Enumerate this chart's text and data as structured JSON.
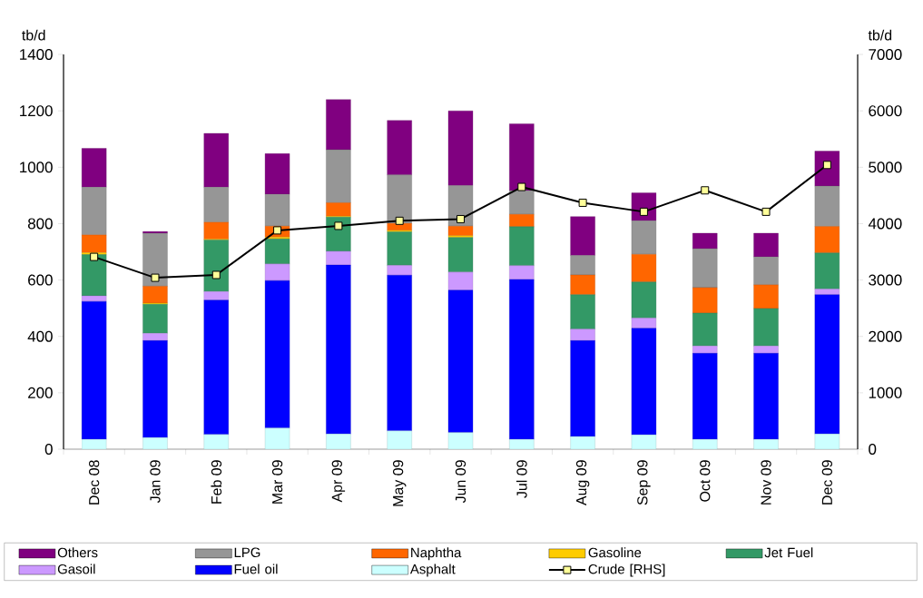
{
  "chart_data": {
    "type": "bar",
    "stacked": true,
    "ylabel": "tb/d",
    "y2label": "tb/d",
    "categories": [
      "Dec 08",
      "Jan 09",
      "Feb 09",
      "Mar 09",
      "Apr 09",
      "May 09",
      "Jun 09",
      "Jul 09",
      "Aug 09",
      "Sep 09",
      "Oct 09",
      "Nov 09",
      "Dec 09"
    ],
    "series": [
      {
        "name": "Asphalt",
        "color": "#ccffff",
        "values": [
          35,
          41,
          52,
          75,
          54,
          65,
          59,
          35,
          45,
          51,
          35,
          35,
          54
        ]
      },
      {
        "name": "Fuel oil",
        "color": "#0000ff",
        "values": [
          489,
          344,
          477,
          523,
          599,
          552,
          505,
          567,
          340,
          378,
          305,
          305,
          494
        ]
      },
      {
        "name": "Gasoil",
        "color": "#cc99ff",
        "values": [
          20,
          26,
          30,
          59,
          49,
          35,
          64,
          49,
          41,
          36,
          26,
          26,
          20
        ]
      },
      {
        "name": "Jet Fuel",
        "color": "#339966",
        "values": [
          146,
          103,
          183,
          89,
          121,
          119,
          123,
          138,
          122,
          128,
          117,
          133,
          128
        ]
      },
      {
        "name": "Gasoline",
        "color": "#ffcc00",
        "values": [
          7,
          4,
          3,
          6,
          3,
          5,
          6,
          0,
          0,
          0,
          0,
          0,
          0
        ]
      },
      {
        "name": "Naphtha",
        "color": "#ff6600",
        "values": [
          63,
          60,
          60,
          39,
          48,
          25,
          34,
          44,
          70,
          98,
          90,
          84,
          94
        ]
      },
      {
        "name": "LPG",
        "color": "#969696",
        "values": [
          169,
          188,
          124,
          113,
          188,
          172,
          144,
          84,
          69,
          119,
          138,
          99,
          143
        ]
      },
      {
        "name": "Others",
        "color": "#800080",
        "values": [
          138,
          6,
          191,
          144,
          178,
          193,
          265,
          237,
          138,
          99,
          55,
          84,
          124
        ]
      },
      {
        "name": "Crude [RHS]",
        "type": "line",
        "axis": "y2",
        "color": "#000000",
        "values": [
          3410,
          3040,
          3090,
          3880,
          3960,
          4050,
          4080,
          4650,
          4370,
          4210,
          4590,
          4210,
          5040
        ]
      }
    ],
    "marker": "square",
    "legend": "bottom",
    "ylim": [
      0,
      1400
    ],
    "yticks": [
      0,
      200,
      400,
      600,
      800,
      1000,
      1200,
      1400
    ],
    "y2lim": [
      0,
      7000
    ],
    "y2ticks": [
      0,
      1000,
      2000,
      3000,
      4000,
      5000,
      6000,
      7000
    ]
  }
}
